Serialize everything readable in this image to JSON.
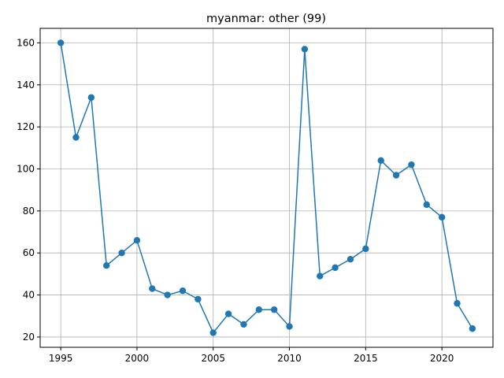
{
  "chart_data": {
    "type": "line",
    "title": "myanmar: other (99)",
    "xlabel": "",
    "ylabel": "",
    "x": [
      1995,
      1996,
      1997,
      1998,
      1999,
      2000,
      2001,
      2002,
      2003,
      2004,
      2005,
      2006,
      2007,
      2008,
      2009,
      2010,
      2011,
      2012,
      2013,
      2014,
      2015,
      2016,
      2017,
      2018,
      2019,
      2020,
      2021,
      2022
    ],
    "series": [
      {
        "values": [
          160,
          115,
          134,
          54,
          60,
          66,
          43,
          40,
          42,
          38,
          22,
          31,
          26,
          33,
          33,
          25,
          157,
          49,
          53,
          57,
          62,
          104,
          97,
          102,
          83,
          77,
          36,
          24
        ],
        "color": "#1f77b4",
        "marker": "circle"
      }
    ],
    "xlim": [
      1993.65,
      2023.35
    ],
    "ylim": [
      15.1,
      166.9
    ],
    "xticks": [
      1995,
      2000,
      2005,
      2010,
      2015,
      2020
    ],
    "xtick_labels": [
      "1995",
      "2000",
      "2005",
      "2010",
      "2015",
      "2020"
    ],
    "yticks": [
      20,
      40,
      60,
      80,
      100,
      120,
      140,
      160
    ],
    "ytick_labels": [
      "20",
      "40",
      "60",
      "80",
      "100",
      "120",
      "140",
      "160"
    ],
    "grid": true,
    "legend": "none"
  }
}
